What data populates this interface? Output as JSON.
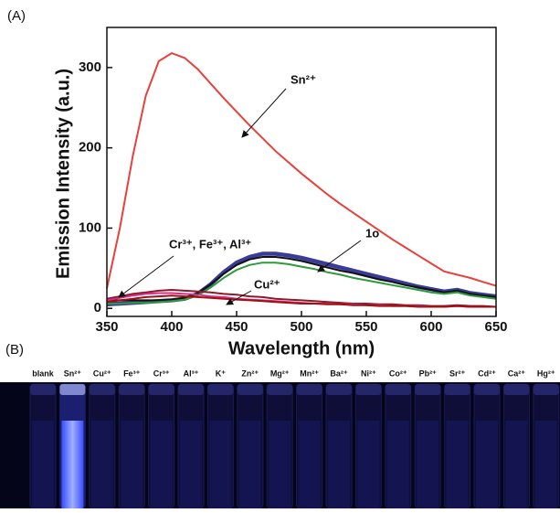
{
  "panel_labels": [
    "(A)",
    "(B)"
  ],
  "chart_data": {
    "type": "line",
    "xlabel": "Wavelength (nm)",
    "ylabel": "Emission Intensity (a.u.)",
    "xlim": [
      350,
      650
    ],
    "xticks": [
      350,
      400,
      450,
      500,
      550,
      600,
      650
    ],
    "ylim": [
      -10,
      350
    ],
    "yticks": [
      0,
      100,
      200,
      300
    ],
    "x": [
      350,
      360,
      370,
      380,
      390,
      400,
      410,
      420,
      430,
      440,
      450,
      460,
      470,
      480,
      490,
      500,
      510,
      520,
      530,
      540,
      550,
      560,
      570,
      580,
      590,
      600,
      610,
      620,
      630,
      640,
      650
    ],
    "series": [
      {
        "color": "#e8403a",
        "values": [
          25,
          100,
          190,
          265,
          308,
          318,
          312,
          298,
          280,
          262,
          245,
          228,
          212,
          196,
          182,
          168,
          155,
          142,
          130,
          119,
          108,
          97,
          86,
          76,
          66,
          56,
          46,
          42,
          38,
          33,
          28
        ]
      },
      {
        "color": "#3a3a9a",
        "values": [
          5,
          6,
          7,
          8,
          9,
          10,
          12,
          18,
          30,
          45,
          57,
          64,
          68,
          68,
          66,
          63,
          59,
          55,
          51,
          47,
          43,
          39,
          35,
          31,
          27,
          24,
          21,
          23,
          19,
          17,
          15
        ]
      },
      {
        "color": "#111111",
        "values": [
          10,
          10,
          10,
          10,
          10,
          11,
          13,
          19,
          30,
          43,
          54,
          61,
          64,
          64,
          62,
          59,
          55,
          51,
          47,
          44,
          40,
          36,
          33,
          29,
          26,
          23,
          20,
          22,
          18,
          16,
          14
        ]
      },
      {
        "color": "#2e9a3a",
        "values": [
          6,
          6,
          7,
          7,
          8,
          9,
          11,
          16,
          26,
          38,
          48,
          54,
          57,
          57,
          55,
          52,
          49,
          45,
          42,
          38,
          35,
          32,
          29,
          26,
          23,
          20,
          18,
          20,
          16,
          14,
          12
        ]
      },
      {
        "color": "#8b1a2a",
        "values": [
          12,
          15,
          18,
          20,
          22,
          23,
          22,
          21,
          20,
          18,
          17,
          15,
          14,
          12,
          11,
          10,
          9,
          8,
          7,
          6,
          6,
          5,
          5,
          4,
          4,
          3,
          3,
          4,
          3,
          3,
          2
        ]
      },
      {
        "color": "#d0308a",
        "values": [
          10,
          13,
          16,
          18,
          19,
          19,
          18,
          17,
          15,
          14,
          12,
          11,
          10,
          9,
          8,
          7,
          6,
          6,
          5,
          5,
          4,
          4,
          3,
          3,
          3,
          2,
          2,
          3,
          2,
          2,
          2
        ]
      },
      {
        "color": "#a01010",
        "values": [
          8,
          10,
          12,
          14,
          15,
          16,
          15,
          14,
          13,
          12,
          11,
          10,
          9,
          8,
          7,
          6,
          6,
          5,
          5,
          4,
          4,
          3,
          3,
          3,
          2,
          2,
          2,
          3,
          2,
          2,
          2
        ]
      }
    ],
    "annotations": [
      "Sn²⁺",
      "1o",
      "Cr³⁺, Fe³⁺, Al³⁺",
      "Cu²⁺"
    ]
  },
  "vials": [
    "blank",
    "Sn²⁺",
    "Cu²⁺",
    "Fe³⁺",
    "Cr³⁺",
    "Al³⁺",
    "K⁺",
    "Zn²⁺",
    "Mg²⁺",
    "Mn²⁺",
    "Ba²⁺",
    "Ni²⁺",
    "Co²⁺",
    "Pb²⁺",
    "Sr²⁺",
    "Cd²⁺",
    "Ca²⁺",
    "Hg²⁺"
  ]
}
